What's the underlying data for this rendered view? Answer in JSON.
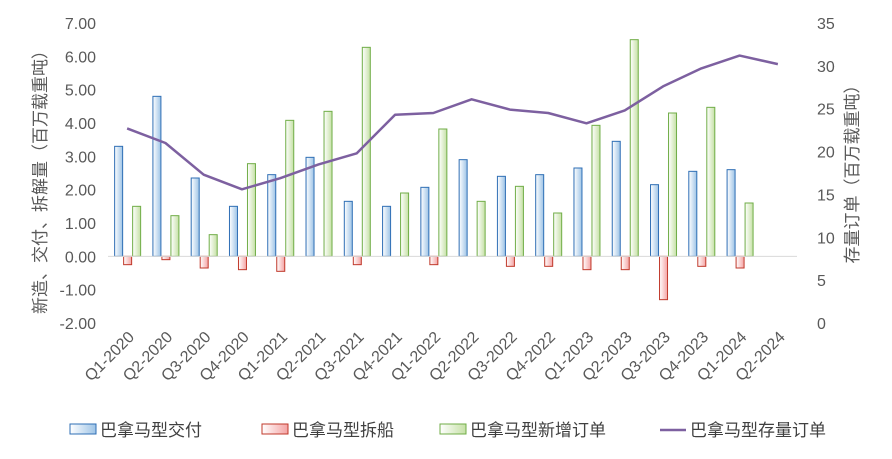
{
  "chart_data": {
    "type": "bar",
    "categories": [
      "Q1-2020",
      "Q2-2020",
      "Q3-2020",
      "Q4-2020",
      "Q1-2021",
      "Q2-2021",
      "Q3-2021",
      "Q4-2021",
      "Q1-2022",
      "Q2-2022",
      "Q3-2022",
      "Q4-2022",
      "Q1-2023",
      "Q2-2023",
      "Q3-2023",
      "Q4-2023",
      "Q1-2024",
      "Q2-2024"
    ],
    "ylabel": "新造、交付、拆解量（百万载重吨）",
    "y2label": "存量订单（百万载重吨）",
    "ylim": [
      -2.0,
      7.0
    ],
    "y2lim": [
      0,
      35
    ],
    "yticks": [
      "7.00",
      "6.00",
      "5.00",
      "4.00",
      "3.00",
      "2.00",
      "1.00",
      "0.00",
      "-1.00",
      "-2.00"
    ],
    "y2ticks": [
      "35",
      "30",
      "25",
      "20",
      "15",
      "10",
      "5",
      "0"
    ],
    "grid": false,
    "legend_position": "bottom",
    "series": [
      {
        "name": "巴拿马型交付",
        "kind": "bar",
        "axis": "left",
        "color": "#5b9bd5",
        "values": [
          3.3,
          4.8,
          2.35,
          1.5,
          2.45,
          2.97,
          1.65,
          1.5,
          2.07,
          2.9,
          2.4,
          2.45,
          2.65,
          3.45,
          2.15,
          2.55,
          2.6,
          null
        ]
      },
      {
        "name": "巴拿马型拆船",
        "kind": "bar",
        "axis": "left",
        "color": "#e05a5a",
        "values": [
          -0.25,
          -0.1,
          -0.35,
          -0.4,
          -0.45,
          0,
          -0.25,
          0,
          -0.25,
          0,
          -0.3,
          -0.3,
          -0.4,
          -0.4,
          -1.3,
          -0.3,
          -0.35,
          null
        ]
      },
      {
        "name": "巴拿马型新增订单",
        "kind": "bar",
        "axis": "left",
        "color": "#a9d18e",
        "values": [
          1.5,
          1.22,
          0.65,
          2.78,
          4.08,
          4.35,
          6.27,
          1.9,
          3.82,
          1.65,
          2.1,
          1.3,
          3.93,
          6.5,
          4.3,
          4.47,
          1.6,
          null
        ]
      },
      {
        "name": "巴拿马型存量订单",
        "kind": "line",
        "axis": "right",
        "color": "#7d60a0",
        "values": [
          22.7,
          21.0,
          17.3,
          15.6,
          16.9,
          18.5,
          19.8,
          24.3,
          24.5,
          26.1,
          24.9,
          24.5,
          23.3,
          24.8,
          27.6,
          29.7,
          31.2,
          30.2
        ]
      }
    ]
  }
}
